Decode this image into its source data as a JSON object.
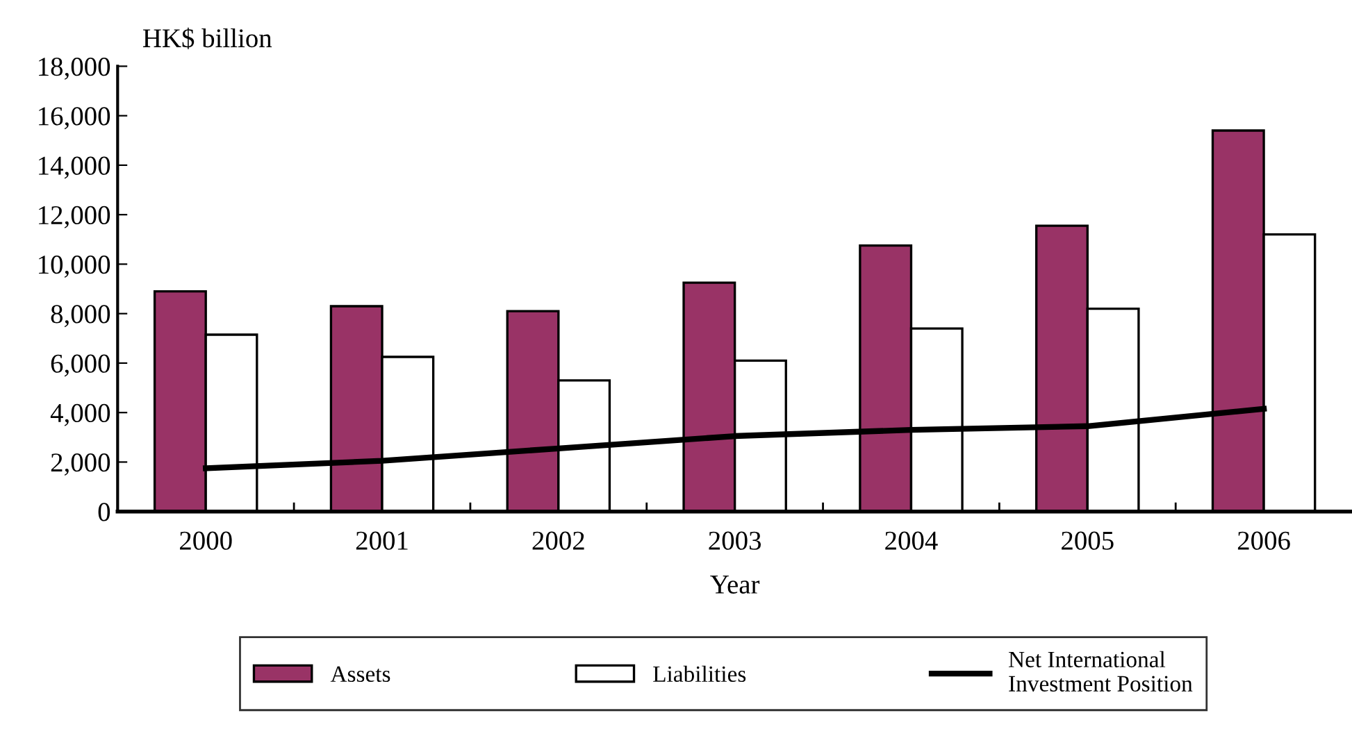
{
  "chart_data": {
    "type": "bar",
    "ylabel": "HK$ billion",
    "xlabel": "Year",
    "categories": [
      "2000",
      "2001",
      "2002",
      "2003",
      "2004",
      "2005",
      "2006"
    ],
    "series": [
      {
        "name": "Assets",
        "color": "#993366",
        "values": [
          8900,
          8300,
          8100,
          9250,
          10750,
          11550,
          15400
        ]
      },
      {
        "name": "Liabilities",
        "color": "#ffffff",
        "values": [
          7150,
          6250,
          5300,
          6100,
          7400,
          8200,
          11200
        ]
      },
      {
        "name": "Net International Investment Position",
        "type": "line",
        "color": "#000000",
        "values": [
          1750,
          2050,
          2550,
          3050,
          3300,
          3450,
          4150
        ]
      }
    ],
    "ylim": [
      0,
      18000
    ],
    "yticks": [
      {
        "value": 0,
        "label": "0"
      },
      {
        "value": 2000,
        "label": "2,000"
      },
      {
        "value": 4000,
        "label": "4,000"
      },
      {
        "value": 6000,
        "label": "6,000"
      },
      {
        "value": 8000,
        "label": "8,000"
      },
      {
        "value": 10000,
        "label": "10,000"
      },
      {
        "value": 12000,
        "label": "12,000"
      },
      {
        "value": 14000,
        "label": "14,000"
      },
      {
        "value": 16000,
        "label": "16,000"
      },
      {
        "value": 18000,
        "label": "18,000"
      }
    ],
    "grid": false,
    "legend": "bottom"
  }
}
